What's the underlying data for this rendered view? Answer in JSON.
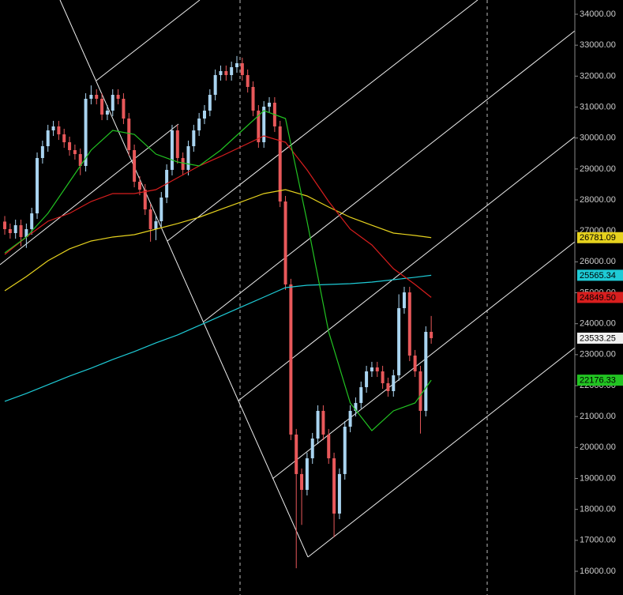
{
  "chart_data": {
    "type": "candlestick",
    "up_color": "#a9d4f0",
    "down_color": "#e8585a",
    "xlim": [
      -0.88,
      105.6
    ],
    "ylim": [
      15234,
      34460
    ],
    "yticks": [
      {
        "value": 16000,
        "label": "16000.00"
      },
      {
        "value": 17000,
        "label": "17000.00"
      },
      {
        "value": 18000,
        "label": "18000.00"
      },
      {
        "value": 19000,
        "label": "19000.00"
      },
      {
        "value": 20000,
        "label": "20000.00"
      },
      {
        "value": 21000,
        "label": "21000.00"
      },
      {
        "value": 22000,
        "label": "22000.00"
      },
      {
        "value": 23000,
        "label": "23000.00"
      },
      {
        "value": 24000,
        "label": "24000.00"
      },
      {
        "value": 25000,
        "label": "25000.00"
      },
      {
        "value": 26000,
        "label": "26000.00"
      },
      {
        "value": 27000,
        "label": "27000.00"
      },
      {
        "value": 28000,
        "label": "28000.00"
      },
      {
        "value": 29000,
        "label": "29000.00"
      },
      {
        "value": 30000,
        "label": "30000.00"
      },
      {
        "value": 31000,
        "label": "31000.00"
      },
      {
        "value": 32000,
        "label": "32000.00"
      },
      {
        "value": 33000,
        "label": "33000.00"
      },
      {
        "value": 34000,
        "label": "34000.00"
      }
    ],
    "open": [
      27300,
      27056,
      26928,
      27183,
      26801,
      27056,
      27566,
      29354,
      29736,
      30247,
      30375,
      30119,
      29864,
      29609,
      29481,
      29098,
      31268,
      31396,
      31268,
      30758,
      30885,
      31396,
      31268,
      30630,
      29609,
      28588,
      28332,
      27694,
      27056,
      27311,
      28077,
      28971,
      30247,
      29354,
      28971,
      29736,
      30247,
      30630,
      30885,
      31396,
      32034,
      32162,
      32034,
      32289,
      32417,
      32034,
      31651,
      30885,
      29864,
      31013,
      31141,
      30375,
      27949,
      25269,
      20418,
      19142,
      18631,
      19652,
      20290,
      21184,
      20418,
      19652,
      17865,
      19142,
      20673,
      21184,
      21439,
      21950,
      22460,
      22588,
      22460,
      22077,
      21822,
      22333,
      24503,
      25013,
      22971,
      22460,
      21184,
      23737
    ],
    "high": [
      27480,
      27236,
      27363,
      27363,
      27236,
      27746,
      29534,
      29916,
      30427,
      30555,
      30555,
      30299,
      30044,
      29789,
      29661,
      31448,
      31700,
      31576,
      31448,
      31065,
      31576,
      31576,
      31448,
      30810,
      29789,
      28768,
      28512,
      27874,
      27491,
      28257,
      29151,
      30427,
      30427,
      29534,
      29916,
      30427,
      30810,
      31065,
      31576,
      32214,
      32342,
      32342,
      32469,
      32650,
      32597,
      32214,
      31831,
      31065,
      31193,
      31321,
      31321,
      30555,
      28129,
      25449,
      20598,
      19322,
      19832,
      20470,
      21364,
      21364,
      20598,
      19832,
      19322,
      20853,
      21364,
      21619,
      22130,
      22640,
      22768,
      22768,
      22640,
      22257,
      22513,
      24950,
      25193,
      25193,
      23151,
      22640,
      23917,
      24250
    ],
    "low": [
      26876,
      26748,
      26748,
      26500,
      26450,
      26876,
      27386,
      29174,
      29556,
      30067,
      29939,
      29684,
      29429,
      29301,
      28800,
      28918,
      31088,
      31088,
      30578,
      30578,
      30705,
      31088,
      30450,
      29429,
      28408,
      28152,
      27514,
      26650,
      26700,
      27131,
      27897,
      28791,
      29174,
      28791,
      28791,
      29556,
      30067,
      30450,
      30705,
      31216,
      31854,
      31854,
      31854,
      32109,
      31854,
      31471,
      30705,
      29684,
      29684,
      30833,
      30195,
      27769,
      25089,
      20238,
      16100,
      17500,
      18451,
      19472,
      20110,
      20238,
      19472,
      17100,
      17685,
      18962,
      20493,
      21004,
      21259,
      21770,
      22280,
      22280,
      21897,
      21642,
      21642,
      22153,
      24323,
      22791,
      22280,
      20450,
      21004,
      23353
    ],
    "close": [
      27056,
      26928,
      27183,
      26801,
      27056,
      27566,
      29354,
      29736,
      30247,
      30375,
      30119,
      29864,
      29609,
      29481,
      29098,
      31268,
      31396,
      31268,
      30758,
      30885,
      31396,
      31268,
      30630,
      29609,
      28588,
      28332,
      27694,
      27056,
      27311,
      28077,
      28971,
      30247,
      29354,
      28971,
      29736,
      30247,
      30630,
      30885,
      31396,
      32034,
      32162,
      32034,
      32289,
      32417,
      32034,
      31651,
      30885,
      29864,
      31013,
      31141,
      30375,
      27949,
      25269,
      20418,
      19142,
      18631,
      19652,
      20290,
      21184,
      20418,
      19652,
      17865,
      19142,
      20673,
      21184,
      21439,
      21950,
      22460,
      22588,
      22460,
      22077,
      21822,
      22333,
      24503,
      25013,
      22971,
      22460,
      21184,
      23737,
      23533.25
    ],
    "close_label": "23533.25",
    "series": [
      {
        "color": "#1ecbd6",
        "x": [
          0,
          4,
          8,
          12,
          16,
          20,
          24,
          28,
          32,
          36,
          40,
          44,
          48,
          52,
          56,
          60,
          64,
          68,
          72,
          76,
          79
        ],
        "values": [
          21490,
          21746,
          22026,
          22307,
          22563,
          22843,
          23099,
          23380,
          23635,
          23941,
          24248,
          24554,
          24860,
          25167,
          25243,
          25269,
          25294,
          25345,
          25422,
          25499,
          25565.34
        ],
        "last_label": "25565.34"
      },
      {
        "color": "#e6d21e",
        "x": [
          0,
          4,
          8,
          12,
          16,
          20,
          24,
          28,
          32,
          36,
          40,
          44,
          48,
          52,
          56,
          60,
          64,
          68,
          72,
          76,
          79
        ],
        "values": [
          25064,
          25524,
          26035,
          26418,
          26673,
          26801,
          26877,
          27056,
          27235,
          27439,
          27694,
          27949,
          28205,
          28332,
          28128,
          27771,
          27439,
          27183,
          26928,
          26852,
          26781.09
        ],
        "last_label": "26781.09"
      },
      {
        "color": "#d81e1e",
        "x": [
          0,
          4,
          8,
          12,
          16,
          20,
          24,
          28,
          32,
          36,
          40,
          44,
          48,
          52,
          56,
          60,
          64,
          68,
          72,
          76,
          79
        ],
        "values": [
          26239,
          26801,
          27311,
          27566,
          27949,
          28205,
          28205,
          28332,
          28715,
          29098,
          29405,
          29736,
          30068,
          29864,
          28971,
          27949,
          27056,
          26545,
          25779,
          25269,
          24849.5
        ],
        "last_label": "24849.50"
      },
      {
        "color": "#22c322",
        "x": [
          0,
          4,
          8,
          12,
          16,
          20,
          24,
          28,
          32,
          36,
          40,
          44,
          48,
          52,
          56,
          60,
          64,
          68,
          72,
          76,
          79
        ],
        "values": [
          26290,
          26801,
          27566,
          28588,
          29609,
          30247,
          30119,
          29481,
          29226,
          29098,
          29609,
          30247,
          30885,
          30630,
          27311,
          23737,
          21439,
          20546,
          21184,
          21439,
          22176.33
        ],
        "last_label": "22176.33"
      }
    ]
  }
}
